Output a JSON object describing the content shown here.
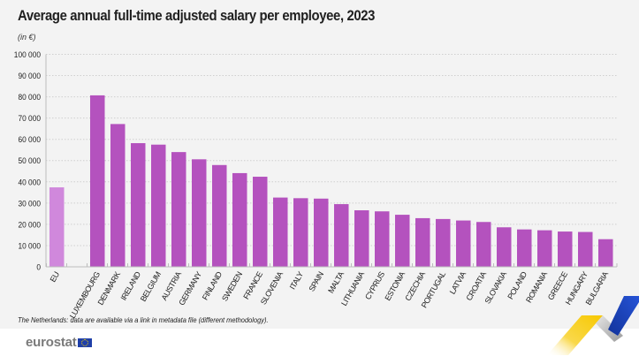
{
  "header": {
    "title": "Average annual full-time adjusted salary per employee, 2023",
    "unit": "(in €)"
  },
  "footer": {
    "note": "The Netherlands: data are available via a link in metadata file (different methodology).",
    "logo_text": "eurostat",
    "logo_icon": "eu-flag-icon"
  },
  "colors": {
    "eu_bar": "#d088dc",
    "country_bar": "#b452be",
    "background": "#f3f3f3",
    "gridline": "#cfcfcf"
  },
  "chart_data": {
    "type": "bar",
    "title": "Average annual full-time adjusted salary per employee, 2023",
    "subtitle": "(in €)",
    "xlabel": "",
    "ylabel": "",
    "ylim": [
      0,
      100000
    ],
    "yticks": [
      0,
      10000,
      20000,
      30000,
      40000,
      50000,
      60000,
      70000,
      80000,
      90000,
      100000
    ],
    "ytick_labels": [
      "0",
      "10 000",
      "20 000",
      "30 000",
      "40 000",
      "50 000",
      "60 000",
      "70 000",
      "80 000",
      "90 000",
      "100 000"
    ],
    "grid": true,
    "legend": "none",
    "categories": [
      "EU",
      "",
      "LUXEMBOURG",
      "DENMARK",
      "IRELAND",
      "BELGIUM",
      "AUSTRIA",
      "GERMANY",
      "FINLAND",
      "SWEDEN",
      "FRANCE",
      "SLOVENIA",
      "ITALY",
      "SPAIN",
      "MALTA",
      "LITHUANIA",
      "CYPRUS",
      "ESTONIA",
      "CZECHIA",
      "PORTUGAL",
      "LATVIA",
      "CROATIA",
      "SLOVAKIA",
      "POLAND",
      "ROMANIA",
      "GREECE",
      "HUNGARY",
      "BULGARIA"
    ],
    "values": [
      37400,
      null,
      80700,
      67200,
      58200,
      57500,
      54000,
      50600,
      47900,
      44100,
      42400,
      32600,
      32300,
      32100,
      29500,
      26600,
      26100,
      24500,
      22900,
      22500,
      21800,
      21100,
      18600,
      17600,
      17200,
      16600,
      16400,
      13000
    ],
    "highlight": [
      "EU"
    ]
  }
}
